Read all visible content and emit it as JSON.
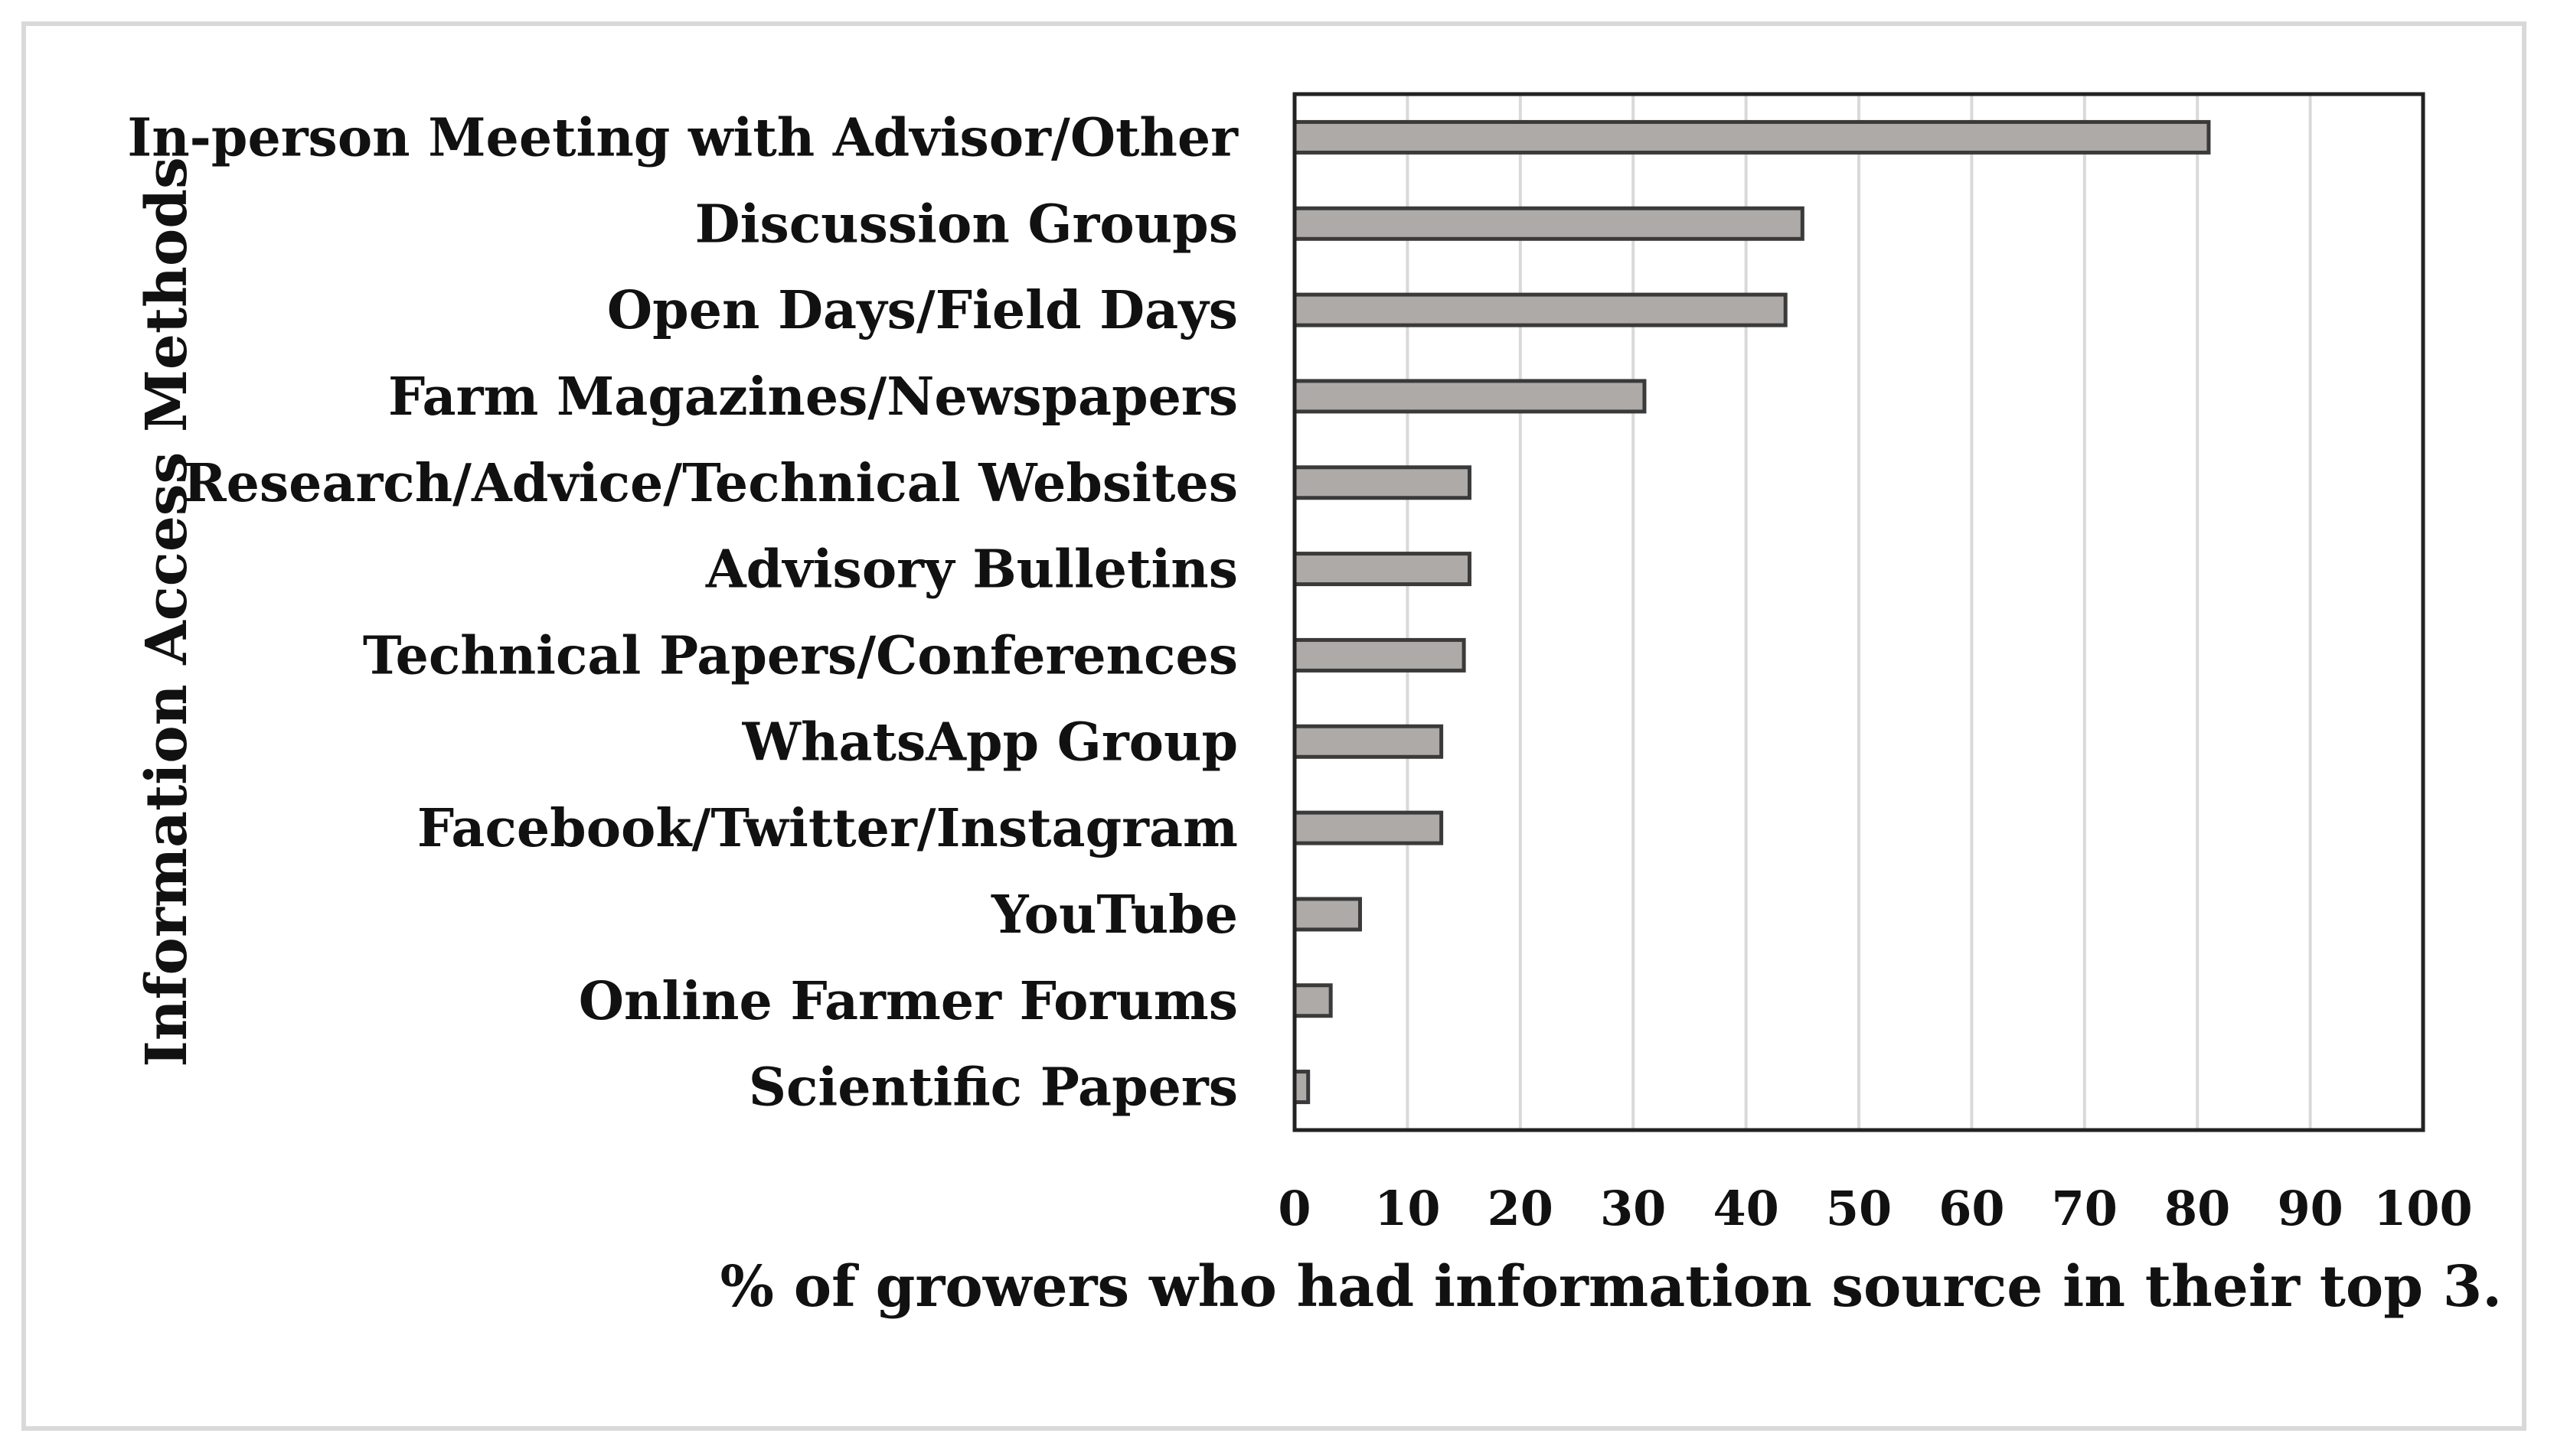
{
  "chart_data": {
    "type": "bar",
    "orientation": "horizontal",
    "title": "",
    "xlabel": "% of growers who had information source in their top 3.",
    "ylabel": "Information Access Methods",
    "xlim": [
      0,
      100
    ],
    "xticks": [
      0,
      10,
      20,
      30,
      40,
      50,
      60,
      70,
      80,
      90,
      100
    ],
    "grid": true,
    "categories": [
      "In-person Meeting with Advisor/Other",
      "Discussion Groups",
      "Open Days/Field Days",
      "Farm Magazines/Newspapers",
      "Research/Advice/Technical Websites",
      "Advisory Bulletins",
      "Technical Papers/Conferences",
      "WhatsApp Group",
      "Facebook/Twitter/Instagram",
      "YouTube",
      "Online Farmer Forums",
      "Scientific Papers"
    ],
    "values": [
      81,
      45,
      43.5,
      31,
      15.5,
      15.5,
      15,
      13,
      13,
      5.8,
      3.2,
      1.2
    ],
    "bar_color": "#adaaa8",
    "bar_edge_color": "#3a3a3a",
    "grid_color": "#d9d9d9"
  }
}
